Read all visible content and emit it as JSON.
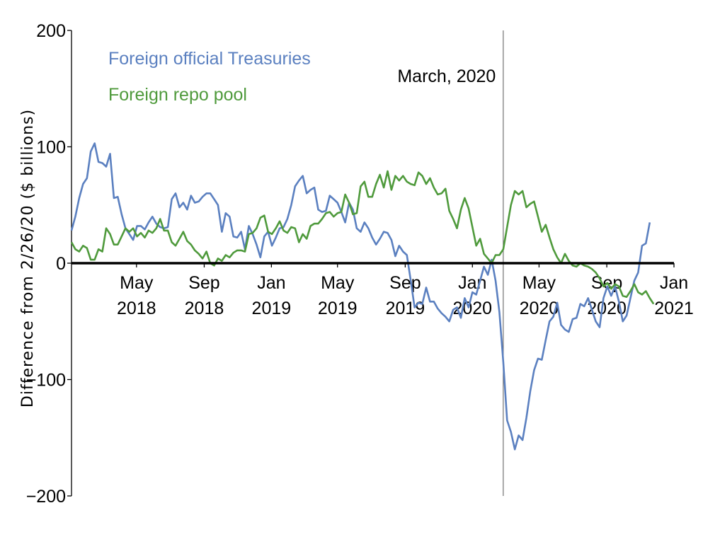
{
  "chart_data": {
    "type": "line",
    "ylabel": "Difference from 2/26/20 ($ billions)",
    "ylim": [
      -200,
      200
    ],
    "yticks": [
      200,
      100,
      0,
      -100,
      -200
    ],
    "ytick_labels": [
      "200",
      "100",
      "0",
      "−100",
      "−200"
    ],
    "xlim": [
      "2018-01-03",
      "2021-01-01"
    ],
    "xticks": [
      {
        "date": "2018-05-01",
        "line1": "May",
        "line2": "2018"
      },
      {
        "date": "2018-09-01",
        "line1": "Sep",
        "line2": "2018"
      },
      {
        "date": "2019-01-01",
        "line1": "Jan",
        "line2": "2019"
      },
      {
        "date": "2019-05-01",
        "line1": "May",
        "line2": "2019"
      },
      {
        "date": "2019-09-01",
        "line1": "Sep",
        "line2": "2019"
      },
      {
        "date": "2020-01-01",
        "line1": "Jan",
        "line2": "2020"
      },
      {
        "date": "2020-05-01",
        "line1": "May",
        "line2": "2020"
      },
      {
        "date": "2020-09-01",
        "line1": "Sep",
        "line2": "2020"
      },
      {
        "date": "2021-01-01",
        "line1": "Jan",
        "line2": "2021"
      }
    ],
    "zero_line": true,
    "grid": false,
    "legend_position": "top-left",
    "annotation": {
      "label": "March, 2020",
      "date": "2020-02-26"
    },
    "x_start": "2018-01-03",
    "x_step_days": 7,
    "series": [
      {
        "name": "Foreign official Treasuries",
        "color": "#5b80c0",
        "values": [
          28,
          40,
          56,
          68,
          73,
          96,
          103,
          87,
          86,
          83,
          94,
          56,
          57,
          42,
          30,
          25,
          20,
          32,
          32,
          29,
          35,
          40,
          34,
          31,
          30,
          31,
          55,
          60,
          48,
          52,
          46,
          58,
          52,
          53,
          57,
          60,
          60,
          55,
          50,
          27,
          43,
          40,
          23,
          22,
          27,
          12,
          32,
          25,
          16,
          5,
          23,
          27,
          15,
          22,
          30,
          31,
          38,
          50,
          66,
          71,
          75,
          60,
          63,
          65,
          46,
          44,
          45,
          58,
          55,
          52,
          44,
          35,
          52,
          46,
          30,
          27,
          35,
          30,
          22,
          16,
          21,
          27,
          26,
          20,
          6,
          15,
          10,
          7,
          -15,
          -38,
          -34,
          -35,
          -21,
          -33,
          -33,
          -39,
          -43,
          -46,
          -50,
          -40,
          -38,
          -47,
          -30,
          -38,
          -25,
          -27,
          -15,
          -3,
          -10,
          3,
          -15,
          -42,
          -85,
          -135,
          -145,
          -160,
          -148,
          -152,
          -133,
          -110,
          -92,
          -82,
          -83,
          -66,
          -50,
          -46,
          -34,
          -53,
          -57,
          -59,
          -48,
          -47,
          -35,
          -37,
          -30,
          -40,
          -50,
          -55,
          -30,
          -20,
          -28,
          -20,
          -33,
          -50,
          -45,
          -30,
          -15,
          -8,
          15,
          17,
          35
        ]
      },
      {
        "name": "Foreign repo pool",
        "color": "#4f9a3c",
        "values": [
          18,
          12,
          10,
          15,
          13,
          3,
          3,
          12,
          10,
          30,
          25,
          16,
          16,
          23,
          30,
          27,
          30,
          23,
          26,
          22,
          28,
          26,
          30,
          38,
          28,
          28,
          18,
          15,
          21,
          27,
          19,
          16,
          11,
          8,
          4,
          10,
          0,
          -2,
          4,
          2,
          7,
          5,
          9,
          11,
          11,
          10,
          25,
          26,
          30,
          39,
          41,
          27,
          25,
          30,
          36,
          28,
          26,
          31,
          30,
          18,
          25,
          21,
          32,
          34,
          34,
          38,
          43,
          44,
          40,
          43,
          44,
          59,
          52,
          42,
          43,
          66,
          70,
          57,
          57,
          68,
          76,
          65,
          79,
          63,
          75,
          71,
          75,
          70,
          68,
          67,
          78,
          75,
          68,
          73,
          65,
          59,
          60,
          64,
          45,
          38,
          30,
          46,
          56,
          47,
          31,
          15,
          21,
          8,
          4,
          0,
          7,
          7,
          12,
          31,
          50,
          62,
          59,
          62,
          48,
          51,
          53,
          40,
          27,
          33,
          22,
          12,
          5,
          0,
          8,
          2,
          -2,
          -3,
          0,
          -2,
          -3,
          -5,
          -8,
          -13,
          -20,
          -17,
          -22,
          -18,
          -20,
          -28,
          -29,
          -24,
          -18,
          -25,
          -27,
          -24,
          -30,
          -35
        ]
      }
    ]
  }
}
